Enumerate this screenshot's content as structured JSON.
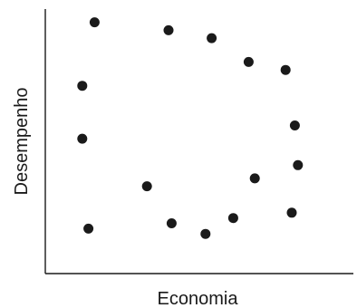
{
  "chart_data": {
    "type": "scatter",
    "title": "",
    "xlabel": "Economia",
    "ylabel": "Desempenho",
    "xlim": [
      0,
      100
    ],
    "ylim": [
      0,
      100
    ],
    "grid": false,
    "legend": "none",
    "ticks": false,
    "marker_color": "#1a1a1a",
    "series": [
      {
        "points": [
          {
            "x": 16,
            "y": 95
          },
          {
            "x": 40,
            "y": 92
          },
          {
            "x": 54,
            "y": 89
          },
          {
            "x": 66,
            "y": 80
          },
          {
            "x": 78,
            "y": 77
          },
          {
            "x": 12,
            "y": 71
          },
          {
            "x": 81,
            "y": 56
          },
          {
            "x": 12,
            "y": 51
          },
          {
            "x": 82,
            "y": 41
          },
          {
            "x": 68,
            "y": 36
          },
          {
            "x": 33,
            "y": 33
          },
          {
            "x": 80,
            "y": 23
          },
          {
            "x": 61,
            "y": 21
          },
          {
            "x": 41,
            "y": 19
          },
          {
            "x": 14,
            "y": 17
          },
          {
            "x": 52,
            "y": 15
          }
        ]
      }
    ]
  }
}
